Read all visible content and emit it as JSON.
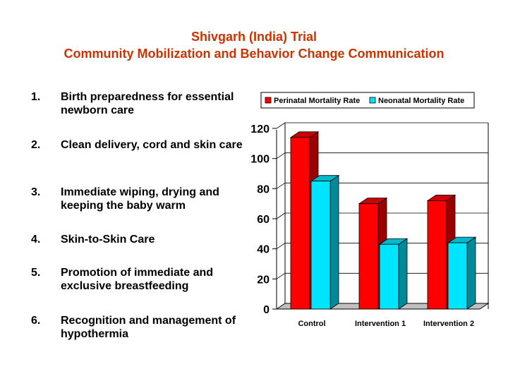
{
  "title": {
    "line1": "Shivgarh (India) Trial",
    "line2": "Community Mobilization and Behavior Change Communication"
  },
  "list": [
    {
      "num": "1.",
      "text": "Birth preparedness for essential newborn care"
    },
    {
      "num": "2.",
      "text": "Clean delivery, cord and skin care"
    },
    {
      "num": "3.",
      "text": "Immediate wiping, drying and keeping the baby warm"
    },
    {
      "num": "4.",
      "text": "Skin-to-Skin Care"
    },
    {
      "num": "5.",
      "text": "Promotion of immediate and exclusive  breastfeeding"
    },
    {
      "num": "6.",
      "text": "Recognition and management of hypothermia"
    }
  ],
  "chart_data": {
    "type": "bar",
    "categories": [
      "Control",
      "Intervention 1",
      "Intervention 2"
    ],
    "series": [
      {
        "name": "Perinatal Mortality Rate",
        "values": [
          114,
          70,
          72
        ],
        "color": "#ff0000"
      },
      {
        "name": "Neonatal Mortality Rate",
        "values": [
          85,
          43,
          44
        ],
        "color": "#00e5ff"
      }
    ],
    "ylim": [
      0,
      120
    ],
    "yticks": [
      "0",
      "20",
      "40",
      "60",
      "80",
      "100",
      "120"
    ],
    "legend_position": "top"
  }
}
